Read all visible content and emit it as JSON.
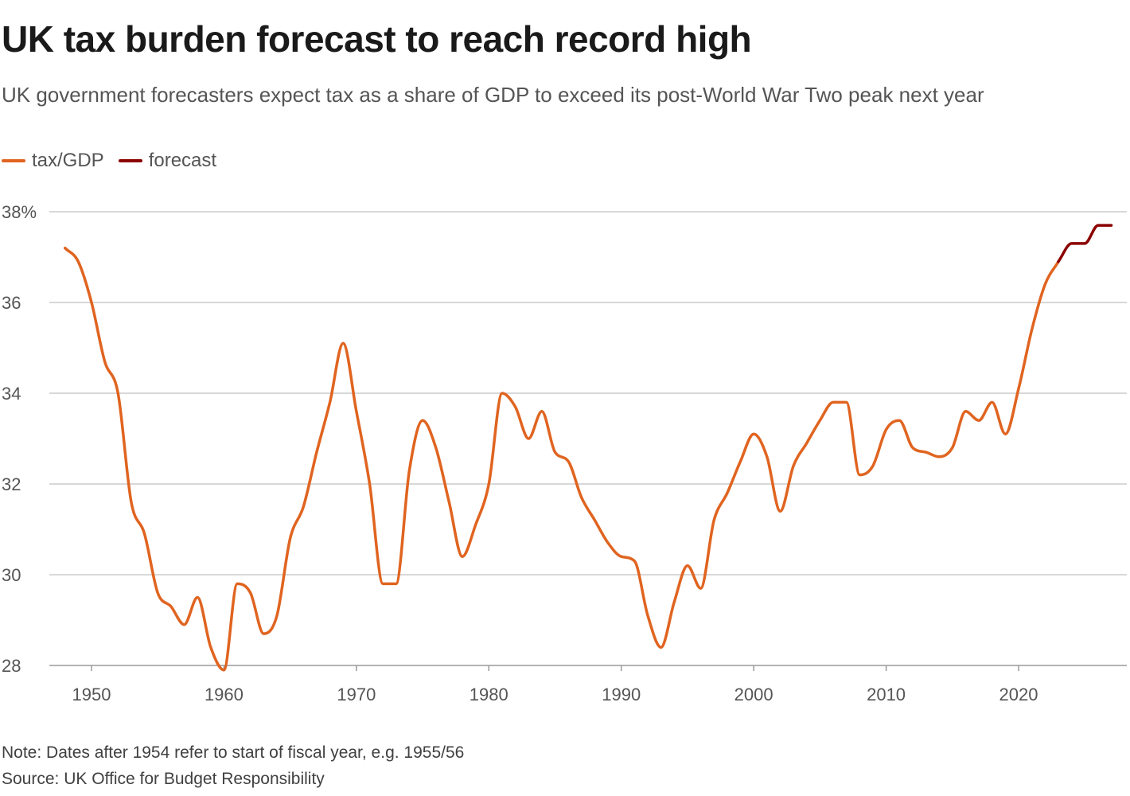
{
  "title": "UK tax burden forecast to reach record high",
  "subtitle": "UK government forecasters expect tax as a share of GDP to exceed its post-World War Two peak next year",
  "legend": [
    {
      "label": "tax/GDP",
      "color": "#e06420"
    },
    {
      "label": "forecast",
      "color": "#8b0000"
    }
  ],
  "note": "Note: Dates after 1954 refer to start of fiscal year, e.g. 1955/56",
  "source": "Source: UK Office for Budget Responsibility",
  "chart_data": {
    "type": "line",
    "title": "UK tax burden forecast to reach record high",
    "xlabel": "",
    "ylabel": "",
    "xlim": [
      1947.5,
      2028
    ],
    "ylim": [
      28,
      38
    ],
    "grid": true,
    "legend_position": "top-left",
    "y_ticks": [
      28,
      30,
      32,
      34,
      36,
      38
    ],
    "y_tick_labels": [
      "28",
      "30",
      "32",
      "34",
      "36",
      "38%"
    ],
    "x_ticks": [
      1950,
      1960,
      1970,
      1980,
      1990,
      2000,
      2010,
      2020
    ],
    "x_tick_labels": [
      "1950",
      "1960",
      "1970",
      "1980",
      "1990",
      "2000",
      "2010",
      "2020"
    ],
    "series": [
      {
        "name": "tax/GDP",
        "color": "#e06420",
        "x": [
          1948,
          1949,
          1950,
          1951,
          1952,
          1953,
          1954,
          1955,
          1956,
          1957,
          1958,
          1959,
          1960,
          1961,
          1962,
          1963,
          1964,
          1965,
          1966,
          1967,
          1968,
          1969,
          1970,
          1971,
          1972,
          1973,
          1974,
          1975,
          1976,
          1977,
          1978,
          1979,
          1980,
          1981,
          1982,
          1983,
          1984,
          1985,
          1986,
          1987,
          1988,
          1989,
          1990,
          1991,
          1992,
          1993,
          1994,
          1995,
          1996,
          1997,
          1998,
          1999,
          2000,
          2001,
          2002,
          2003,
          2004,
          2005,
          2006,
          2007,
          2008,
          2009,
          2010,
          2011,
          2012,
          2013,
          2014,
          2015,
          2016,
          2017,
          2018,
          2019,
          2020,
          2021,
          2022,
          2023
        ],
        "values": [
          37.2,
          36.9,
          36.0,
          34.7,
          34.0,
          31.6,
          30.9,
          29.6,
          29.3,
          28.9,
          29.5,
          28.4,
          27.9,
          29.8,
          29.6,
          28.7,
          29.1,
          30.8,
          31.5,
          32.7,
          33.8,
          35.1,
          33.6,
          32.0,
          29.8,
          29.8,
          32.3,
          33.4,
          32.8,
          31.6,
          30.4,
          31.1,
          32.0,
          34.0,
          33.7,
          33.0,
          33.6,
          32.7,
          32.5,
          31.7,
          31.2,
          30.7,
          30.4,
          30.3,
          29.1,
          28.4,
          29.4,
          30.2,
          29.7,
          31.2,
          31.8,
          32.5,
          33.1,
          32.6,
          31.4,
          32.4,
          32.9,
          33.4,
          33.8,
          33.8,
          32.2,
          32.4,
          33.2,
          33.4,
          32.8,
          32.7,
          32.6,
          32.8,
          33.6,
          33.4,
          33.8,
          33.1,
          34.1,
          35.4,
          36.4,
          36.9
        ]
      },
      {
        "name": "forecast",
        "color": "#8b0000",
        "x": [
          2023,
          2024,
          2025,
          2026,
          2027
        ],
        "values": [
          36.9,
          37.3,
          37.3,
          37.7,
          37.7
        ]
      }
    ]
  }
}
